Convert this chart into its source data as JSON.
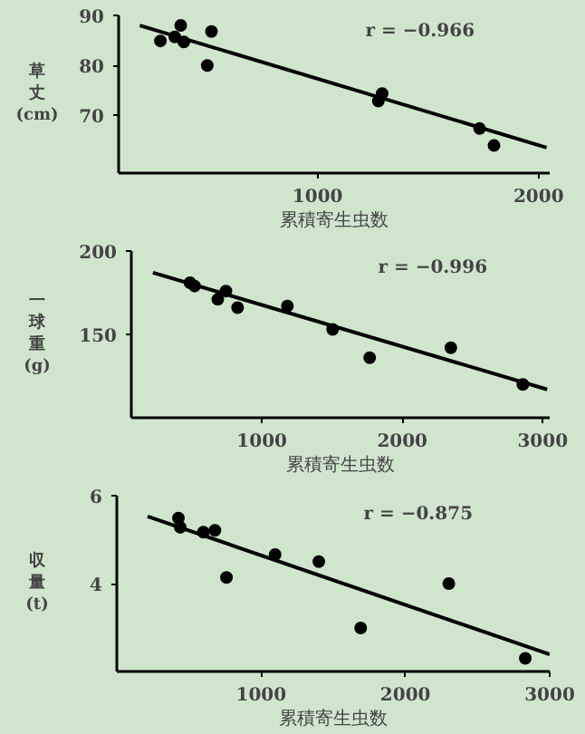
{
  "chart_data": [
    {
      "type": "scatter",
      "xlabel": "累積寄生虫数",
      "ylabel": "草丈(cm)",
      "xlim": [
        100,
        2050
      ],
      "xticks": [
        1000,
        2000
      ],
      "ylim": [
        58.5,
        90
      ],
      "yticks": [
        70,
        80,
        90
      ],
      "annotations": [
        "r = −0.966"
      ],
      "series": [
        {
          "marker": "circle",
          "color": "#000000",
          "x": [
            289,
            354,
            381,
            395,
            501,
            520,
            1275,
            1292,
            1733,
            1798
          ],
          "values": [
            84.9,
            85.7,
            88.0,
            84.7,
            80.0,
            86.8,
            72.9,
            74.4,
            67.4,
            64.0
          ]
        },
        {
          "type": "line",
          "color": "#000000",
          "x": [
            196,
            2036
          ],
          "values": [
            88.0,
            63.6
          ]
        }
      ]
    },
    {
      "type": "scatter",
      "xlabel": "累積寄生虫数",
      "ylabel": "一球重(g)",
      "xlim": [
        70,
        3050
      ],
      "xticks": [
        1000,
        2000,
        3000
      ],
      "ylim": [
        100,
        200
      ],
      "yticks": [
        150,
        200
      ],
      "annotations": [
        "r = −0.996"
      ],
      "series": [
        {
          "marker": "circle",
          "color": "#000000",
          "x": [
            488,
            521,
            686,
            744,
            827,
            1182,
            1504,
            1768,
            2346,
            2859
          ],
          "values": [
            181,
            179,
            171,
            176,
            166,
            167,
            153,
            136,
            142,
            120
          ]
        },
        {
          "type": "line",
          "color": "#000000",
          "x": [
            224,
            3032
          ],
          "values": [
            187,
            117
          ]
        }
      ]
    },
    {
      "type": "scatter",
      "xlabel": "累積寄生虫数",
      "ylabel": "収量(t)",
      "xlim": [
        0,
        3000
      ],
      "xticks": [
        1000,
        2000,
        3000
      ],
      "ylim": [
        2,
        6
      ],
      "yticks": [
        4,
        6
      ],
      "annotations": [
        "r = −0.875"
      ],
      "series": [
        {
          "marker": "circle",
          "color": "#000000",
          "x": [
            427,
            440,
            600,
            680,
            760,
            1097,
            1400,
            1690,
            2301,
            2831
          ],
          "values": [
            5.49,
            5.28,
            5.17,
            5.21,
            4.14,
            4.66,
            4.5,
            2.99,
            4.0,
            2.3
          ]
        },
        {
          "type": "line",
          "color": "#000000",
          "x": [
            213,
            3000
          ],
          "values": [
            5.53,
            2.39
          ]
        }
      ]
    }
  ]
}
